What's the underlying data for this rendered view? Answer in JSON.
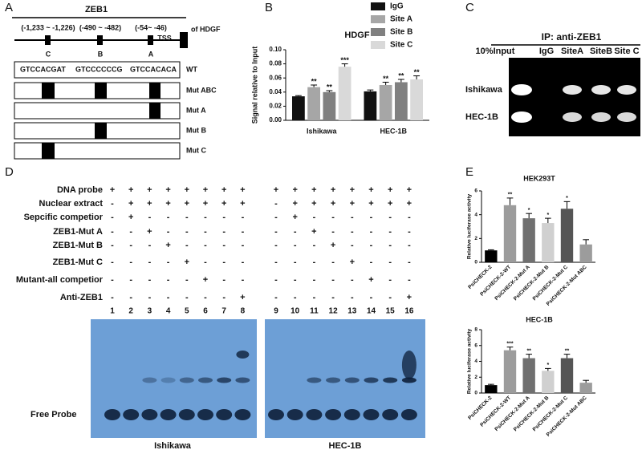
{
  "panel_labels": [
    "A",
    "B",
    "C",
    "D",
    "E"
  ],
  "panel_a": {
    "title": "ZEB1",
    "sites": [
      {
        "position": "(-1,233 ~ -1,226)",
        "letter": "C"
      },
      {
        "position": "(-490 ~ -482)",
        "letter": "B"
      },
      {
        "position": "(-54~ -46)",
        "letter": "A"
      }
    ],
    "tss": "TSS",
    "tss_gene": "of  HDGF",
    "sequences": [
      "GTCCACGAT",
      "GTCCCCCCG",
      "GTCCACACA"
    ],
    "rows": [
      "WT",
      "Mut ABC",
      "Mut A",
      "Mut B",
      "Mut C"
    ]
  },
  "panel_c": {
    "title": "IP: anti-ZEB1",
    "lanes": [
      "10%Input",
      "IgG",
      "SiteA",
      "SiteB",
      "Site C"
    ],
    "cell_lines": [
      "Ishikawa",
      "HEC-1B"
    ]
  },
  "panel_d": {
    "rows": [
      {
        "label": "DNA probe",
        "marks": [
          "+",
          "+",
          "+",
          "+",
          "+",
          "+",
          "+",
          "+",
          "+",
          "+",
          "+",
          "+",
          "+",
          "+",
          "+",
          "+"
        ]
      },
      {
        "label": "Nuclear extract",
        "marks": [
          "-",
          "+",
          "+",
          "+",
          "+",
          "+",
          "+",
          "+",
          "-",
          "+",
          "+",
          "+",
          "+",
          "+",
          "+",
          "+"
        ]
      },
      {
        "label": "Sepcific competior",
        "marks": [
          "-",
          "+",
          "-",
          "-",
          "-",
          "-",
          "-",
          "-",
          "-",
          "+",
          "-",
          "-",
          "-",
          "-",
          "-",
          "-"
        ]
      },
      {
        "label": "ZEB1-Mut A",
        "marks": [
          "-",
          "-",
          "+",
          "-",
          "-",
          "-",
          "-",
          "-",
          "-",
          "-",
          "+",
          "-",
          "-",
          "-",
          "-",
          "-"
        ]
      },
      {
        "label": "ZEB1-Mut B",
        "marks": [
          "-",
          "-",
          "-",
          "+",
          "-",
          "-",
          "-",
          "-",
          "-",
          "-",
          "-",
          "+",
          "-",
          "-",
          "-",
          "-"
        ]
      },
      {
        "label": "ZEB1-Mut C",
        "marks": [
          "-",
          "-",
          "-",
          "-",
          "+",
          "-",
          "-",
          "-",
          "-",
          "-",
          "-",
          "-",
          "+",
          "-",
          "-",
          "-"
        ]
      },
      {
        "label": "Mutant-all competior",
        "marks": [
          "-",
          "-",
          "-",
          "-",
          "-",
          "+",
          "-",
          "-",
          "-",
          "-",
          "-",
          "-",
          "-",
          "+",
          "-",
          "-"
        ]
      },
      {
        "label": "Anti-ZEB1",
        "marks": [
          "-",
          "-",
          "-",
          "-",
          "-",
          "-",
          "-",
          "+",
          "-",
          "-",
          "-",
          "-",
          "-",
          "-",
          "-",
          "+"
        ]
      }
    ],
    "lanes": [
      "1",
      "2",
      "3",
      "4",
      "5",
      "6",
      "7",
      "8",
      "9",
      "10",
      "11",
      "12",
      "13",
      "14",
      "15",
      "16"
    ],
    "free_probe": "Free Probe",
    "cell_lines": [
      "Ishikawa",
      "HEC-1B"
    ]
  },
  "chart_data": [
    {
      "type": "bar",
      "title": "HDGF",
      "y_label": "Signal relative to Input",
      "categories": [
        "Ishikawa",
        "HEC-1B"
      ],
      "series": [
        {
          "name": "IgG",
          "color": "#111111",
          "values": [
            0.034,
            0.041
          ],
          "errors": [
            0.001,
            0.002
          ],
          "annotations": [
            null,
            null
          ]
        },
        {
          "name": "Site A",
          "color": "#a6a6a6",
          "values": [
            0.047,
            0.05
          ],
          "errors": [
            0.003,
            0.004
          ],
          "annotations": [
            "**",
            "**"
          ]
        },
        {
          "name": "Site B",
          "color": "#808080",
          "values": [
            0.04,
            0.054
          ],
          "errors": [
            0.002,
            0.004
          ],
          "annotations": [
            "**",
            "**"
          ]
        },
        {
          "name": "Site C",
          "color": "#d9d9d9",
          "values": [
            0.076,
            0.058
          ],
          "errors": [
            0.004,
            0.005
          ],
          "annotations": [
            "***",
            "**"
          ]
        }
      ],
      "ylim": [
        0,
        0.1
      ],
      "yticks": [
        {
          "value": 0,
          "label": "0.00"
        },
        0.02,
        0.04,
        0.06,
        0.08,
        {
          "value": 0.1,
          "label": "0.10"
        }
      ]
    },
    {
      "type": "bar",
      "title": "HEK293T",
      "y_label": "Relative luciferase activity",
      "categories": [
        "PsiCHECK-2",
        "PsiCHECK-2-WT",
        "PsiCHECK-2-Mut A",
        "PsiCHECK-2-Mut B",
        "PsiCHECK-2-Mut C",
        "PsiCHECK-2-Mut ABC"
      ],
      "values": [
        1,
        4.8,
        3.7,
        3.3,
        4.5,
        1.5
      ],
      "errors": [
        0.05,
        0.6,
        0.4,
        0.4,
        0.6,
        0.4
      ],
      "annotations": [
        null,
        "**",
        "*",
        "*",
        "*",
        null
      ],
      "colors": [
        "#000000",
        "#9c9c9c",
        "#707070",
        "#d0d0d0",
        "#555555",
        "#9c9c9c"
      ],
      "ylim": [
        0,
        6
      ],
      "yticks": [
        0,
        2,
        4,
        6
      ]
    },
    {
      "type": "bar",
      "title": "HEC-1B",
      "y_label": "Relative luciferase activity",
      "categories": [
        "PsiCHECK-2",
        "PsiCHECK-2-WT",
        "PsiCHECK-2-Mut A",
        "PsiCHECK-2-Mut B",
        "PsiCHECK-2-Mut C",
        "PsiCHECK-2-Mut ABC"
      ],
      "values": [
        1,
        5.4,
        4.4,
        2.8,
        4.4,
        1.3
      ],
      "errors": [
        0.1,
        0.4,
        0.5,
        0.3,
        0.5,
        0.3
      ],
      "annotations": [
        null,
        "***",
        "**",
        "*",
        "**",
        null
      ],
      "colors": [
        "#000000",
        "#9c9c9c",
        "#707070",
        "#d0d0d0",
        "#555555",
        "#9c9c9c"
      ],
      "ylim": [
        0,
        8
      ],
      "yticks": [
        0,
        2,
        4,
        6,
        8
      ]
    }
  ]
}
